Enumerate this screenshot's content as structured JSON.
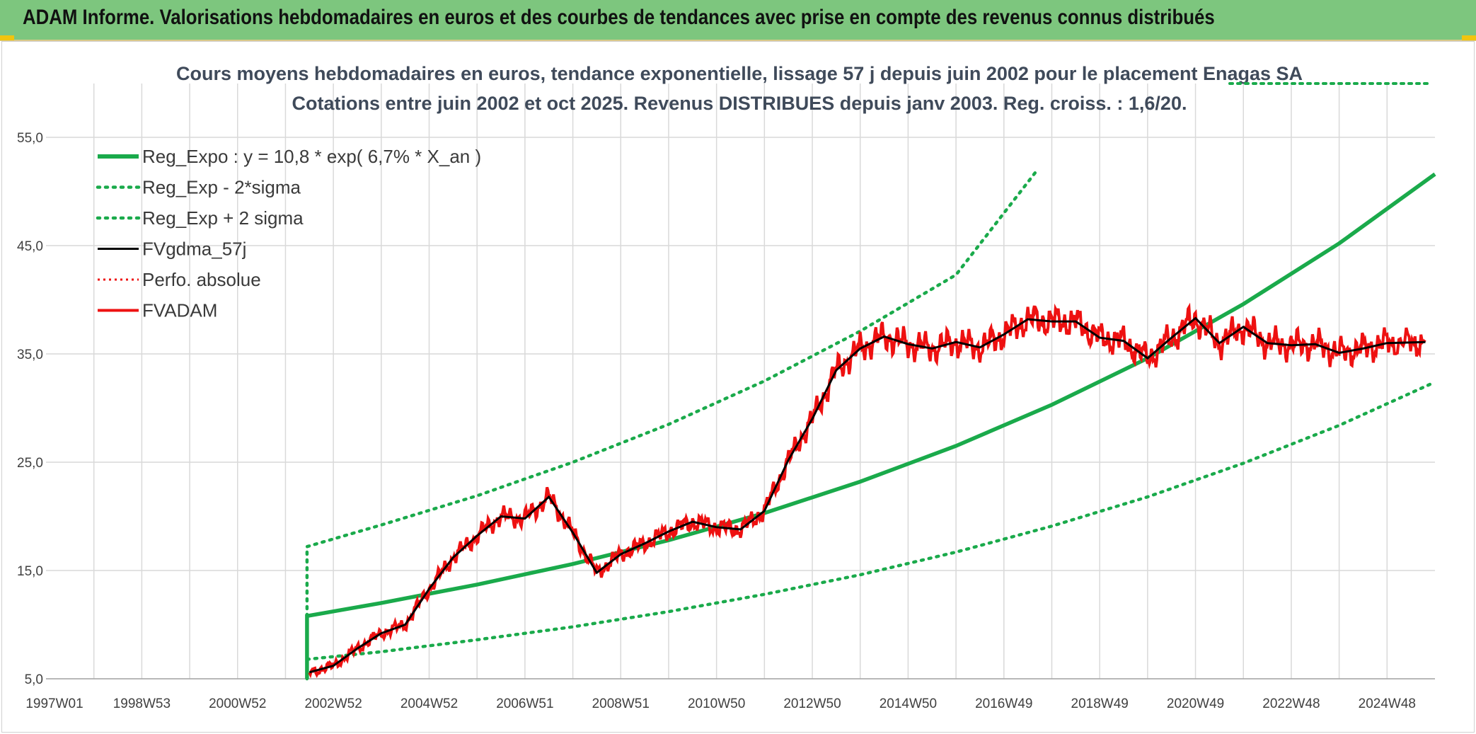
{
  "header": {
    "title": "ADAM Informe. Valorisations hebdomadaires en euros et des courbes de tendances avec prise en compte des revenus connus distribués"
  },
  "chart_data": {
    "type": "line",
    "title_line1": "Cours moyens hebdomadaires en euros, tendance exponentielle, lissage 57 j depuis juin 2002 pour le placement Enagas SA",
    "title_line2": "Cotations entre juin 2002 et oct 2025. Revenus DISTRIBUES depuis janv 2003. Reg. croiss. : 1,6/20.",
    "x_tick_labels": [
      "1997W01",
      "1998W53",
      "2000W52",
      "2002W52",
      "2004W52",
      "2006W51",
      "2008W51",
      "2010W50",
      "2012W50",
      "2014W50",
      "2016W49",
      "2018W49",
      "2020W49",
      "2022W48",
      "2024W48"
    ],
    "x_tick_years": [
      1997.0,
      1999.0,
      2001.0,
      2003.0,
      2005.0,
      2007.0,
      2009.0,
      2011.0,
      2013.0,
      2015.0,
      2017.0,
      2019.0,
      2021.0,
      2023.0,
      2025.0
    ],
    "xlim": [
      1997.0,
      2026.0
    ],
    "ylim": [
      5.0,
      55.0
    ],
    "y_ticks": [
      "5,0",
      "15,0",
      "25,0",
      "35,0",
      "45,0",
      "55,0"
    ],
    "y_tick_values": [
      5,
      15,
      25,
      35,
      45,
      55
    ],
    "grid": true,
    "legend_position": "top-left",
    "colors": {
      "green": "#1aaa4b",
      "black": "#000000",
      "red": "#ee1111"
    },
    "series": [
      {
        "name": "Reg_Expo : y = 10,8 * exp( 6,7% *  X_an )",
        "style": "solid-green",
        "x": [
          2002.45,
          2002.45,
          2004,
          2006,
          2008,
          2010,
          2012,
          2014,
          2016,
          2018,
          2020,
          2022,
          2024,
          2026
        ],
        "y": [
          5.0,
          10.8,
          12.0,
          13.7,
          15.6,
          17.8,
          20.3,
          23.2,
          26.5,
          30.3,
          34.6,
          39.6,
          45.2,
          51.6
        ]
      },
      {
        "name": "Reg_Exp - 2*sigma",
        "style": "dotted-green",
        "x": [
          2002.45,
          2004,
          2006,
          2008,
          2010,
          2012,
          2014,
          2016,
          2018,
          2020,
          2022,
          2024,
          2026
        ],
        "y": [
          6.8,
          7.5,
          8.6,
          9.8,
          11.2,
          12.8,
          14.6,
          16.7,
          19.1,
          21.8,
          24.9,
          28.4,
          32.4
        ]
      },
      {
        "name": "Reg_Exp + 2 sigma",
        "style": "dotted-green",
        "x": [
          2002.45,
          2002.45,
          2004,
          2006,
          2008,
          2010,
          2012,
          2014,
          2016,
          2017.7
        ],
        "y": [
          5.0,
          17.2,
          19.2,
          21.9,
          25.0,
          28.5,
          32.5,
          37.1,
          42.3,
          52.0
        ]
      },
      {
        "name": "FVgdma_57j",
        "style": "solid-black",
        "x": [
          2002.5,
          2003,
          2003.5,
          2004,
          2004.5,
          2005,
          2005.5,
          2006,
          2006.5,
          2007,
          2007.5,
          2008,
          2008.5,
          2009,
          2009.5,
          2010,
          2010.5,
          2011,
          2011.5,
          2012,
          2012.5,
          2013,
          2013.5,
          2014,
          2014.5,
          2015,
          2015.5,
          2016,
          2016.5,
          2017,
          2017.5,
          2018,
          2018.5,
          2019,
          2019.5,
          2020,
          2020.5,
          2021,
          2021.5,
          2022,
          2022.5,
          2023,
          2023.5,
          2024,
          2024.5,
          2025,
          2025.8
        ],
        "y": [
          5.6,
          6.2,
          7.8,
          9.2,
          10.0,
          13.3,
          16.2,
          18.2,
          20.0,
          19.8,
          21.8,
          18.5,
          14.8,
          16.5,
          17.5,
          18.6,
          19.5,
          19.0,
          18.8,
          20.5,
          25.2,
          29.0,
          33.5,
          35.5,
          36.6,
          35.9,
          35.5,
          36.1,
          35.6,
          36.8,
          38.2,
          38.0,
          38.0,
          36.5,
          36.2,
          34.6,
          36.5,
          38.3,
          36.0,
          37.5,
          36.0,
          35.8,
          35.9,
          35.1,
          35.5,
          36.0,
          36.1
        ]
      },
      {
        "name": "Perfo. absolue",
        "style": "dotted-red",
        "x": [],
        "y": []
      },
      {
        "name": "FVADAM",
        "style": "solid-red",
        "x": [
          2002.5,
          2003,
          2003.5,
          2004,
          2004.5,
          2005,
          2005.5,
          2006,
          2006.5,
          2007,
          2007.5,
          2008,
          2008.5,
          2009,
          2009.5,
          2010,
          2010.5,
          2011,
          2011.5,
          2012,
          2012.5,
          2013,
          2013.5,
          2014,
          2014.5,
          2015,
          2015.5,
          2016,
          2016.5,
          2017,
          2017.5,
          2018,
          2018.5,
          2019,
          2019.5,
          2020,
          2020.5,
          2021,
          2021.5,
          2022,
          2022.5,
          2023,
          2023.5,
          2024,
          2024.5,
          2025,
          2025.8
        ],
        "y": [
          5.6,
          6.2,
          7.8,
          9.2,
          10.0,
          13.3,
          16.2,
          18.2,
          20.0,
          19.8,
          21.8,
          18.5,
          14.8,
          16.5,
          17.5,
          18.6,
          19.5,
          19.0,
          18.8,
          20.5,
          25.2,
          29.0,
          33.5,
          35.5,
          36.6,
          35.9,
          35.5,
          36.1,
          35.6,
          36.8,
          38.2,
          38.0,
          38.0,
          36.5,
          36.2,
          34.6,
          36.5,
          38.3,
          36.0,
          37.5,
          36.0,
          35.8,
          35.9,
          35.1,
          35.5,
          36.0,
          36.1
        ]
      }
    ]
  }
}
